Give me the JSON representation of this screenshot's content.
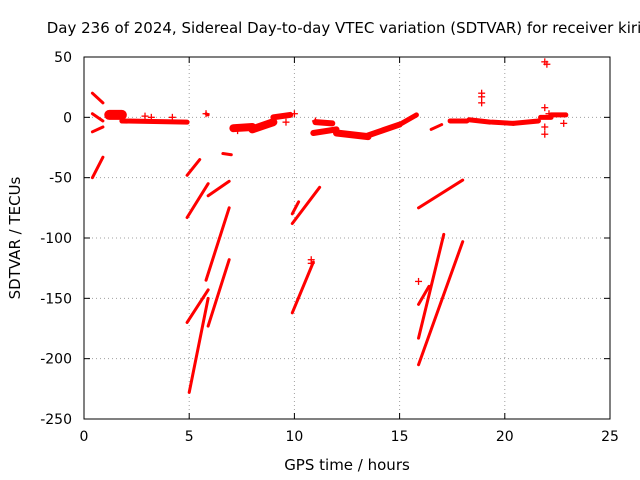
{
  "chart_data": {
    "type": "scatter",
    "title": "Day 236 of 2024, Sidereal Day-to-day VTEC variation (SDTVAR) for receiver kiri",
    "xlabel": "GPS time / hours",
    "ylabel": "SDTVAR / TECUs",
    "xlim": [
      0,
      25
    ],
    "ylim": [
      -250,
      50
    ],
    "xticks": [
      0,
      5,
      10,
      15,
      20,
      25
    ],
    "yticks": [
      -250,
      -200,
      -150,
      -100,
      -50,
      0,
      50
    ],
    "grid": true,
    "marker": "plus",
    "color": "#ff0000",
    "tracks": [
      {
        "x": [
          0.4,
          0.9
        ],
        "y": [
          20,
          12
        ],
        "w": 3
      },
      {
        "x": [
          0.4,
          0.9
        ],
        "y": [
          3,
          -3
        ],
        "w": 3
      },
      {
        "x": [
          0.4,
          0.9
        ],
        "y": [
          -12,
          -8
        ],
        "w": 3
      },
      {
        "x": [
          0.4,
          0.9
        ],
        "y": [
          -50,
          -33
        ],
        "w": 3
      },
      {
        "x": [
          1.2,
          1.8
        ],
        "y": [
          2,
          2
        ],
        "w": 10
      },
      {
        "x": [
          1.8,
          4.9
        ],
        "y": [
          -3,
          -4
        ],
        "w": 5
      },
      {
        "x": [
          4.9,
          5.5
        ],
        "y": [
          -48,
          -35
        ],
        "w": 3
      },
      {
        "x": [
          4.9,
          5.9
        ],
        "y": [
          -83,
          -55
        ],
        "w": 3
      },
      {
        "x": [
          4.9,
          5.9
        ],
        "y": [
          -170,
          -143
        ],
        "w": 3
      },
      {
        "x": [
          5.0,
          5.9
        ],
        "y": [
          -228,
          -150
        ],
        "w": 3
      },
      {
        "x": [
          5.8,
          6.9
        ],
        "y": [
          -135,
          -75
        ],
        "w": 3
      },
      {
        "x": [
          5.9,
          6.9
        ],
        "y": [
          -173,
          -118
        ],
        "w": 3
      },
      {
        "x": [
          5.9,
          6.9
        ],
        "y": [
          -65,
          -53
        ],
        "w": 3
      },
      {
        "x": [
          6.6,
          7.0
        ],
        "y": [
          -30,
          -31
        ],
        "w": 3
      },
      {
        "x": [
          5.8,
          5.9
        ],
        "y": [
          3,
          2
        ],
        "w": 3
      },
      {
        "x": [
          7.1,
          8.0
        ],
        "y": [
          -9,
          -8
        ],
        "w": 8
      },
      {
        "x": [
          8.0,
          9.0
        ],
        "y": [
          -10,
          -4
        ],
        "w": 8
      },
      {
        "x": [
          9.0,
          9.8
        ],
        "y": [
          0,
          2
        ],
        "w": 6
      },
      {
        "x": [
          9.9,
          11.2
        ],
        "y": [
          -88,
          -58
        ],
        "w": 3
      },
      {
        "x": [
          9.9,
          10.2
        ],
        "y": [
          -80,
          -70
        ],
        "w": 3
      },
      {
        "x": [
          9.9,
          10.9
        ],
        "y": [
          -162,
          -120
        ],
        "w": 3
      },
      {
        "x": [
          10.9,
          12.0
        ],
        "y": [
          -13,
          -10
        ],
        "w": 6
      },
      {
        "x": [
          11.0,
          11.8
        ],
        "y": [
          -4,
          -5
        ],
        "w": 6
      },
      {
        "x": [
          12.0,
          13.5
        ],
        "y": [
          -13,
          -16
        ],
        "w": 7
      },
      {
        "x": [
          13.5,
          15.0
        ],
        "y": [
          -15,
          -6
        ],
        "w": 6
      },
      {
        "x": [
          15.0,
          15.8
        ],
        "y": [
          -6,
          2
        ],
        "w": 5
      },
      {
        "x": [
          15.9,
          18.0
        ],
        "y": [
          -75,
          -52
        ],
        "w": 3
      },
      {
        "x": [
          15.9,
          16.4
        ],
        "y": [
          -155,
          -140
        ],
        "w": 3
      },
      {
        "x": [
          15.9,
          17.1
        ],
        "y": [
          -183,
          -97
        ],
        "w": 3
      },
      {
        "x": [
          15.9,
          18.0
        ],
        "y": [
          -205,
          -103
        ],
        "w": 3
      },
      {
        "x": [
          16.5,
          17.0
        ],
        "y": [
          -10,
          -6
        ],
        "w": 3
      },
      {
        "x": [
          17.4,
          18.2
        ],
        "y": [
          -3,
          -3
        ],
        "w": 5
      },
      {
        "x": [
          18.3,
          19.3
        ],
        "y": [
          -2,
          -4
        ],
        "w": 5
      },
      {
        "x": [
          19.4,
          20.4
        ],
        "y": [
          -4,
          -5
        ],
        "w": 5
      },
      {
        "x": [
          20.4,
          21.6
        ],
        "y": [
          -5,
          -3
        ],
        "w": 5
      },
      {
        "x": [
          21.7,
          22.2
        ],
        "y": [
          0,
          0
        ],
        "w": 5
      },
      {
        "x": [
          22.2,
          22.9
        ],
        "y": [
          2,
          2
        ],
        "w": 5
      }
    ],
    "points": [
      {
        "x": 2.9,
        "y": 1
      },
      {
        "x": 3.2,
        "y": 0
      },
      {
        "x": 4.2,
        "y": 0
      },
      {
        "x": 5.8,
        "y": 3
      },
      {
        "x": 7.3,
        "y": -11
      },
      {
        "x": 9.6,
        "y": -4
      },
      {
        "x": 10.0,
        "y": 3
      },
      {
        "x": 10.8,
        "y": -118
      },
      {
        "x": 10.8,
        "y": -121
      },
      {
        "x": 11.0,
        "y": -3
      },
      {
        "x": 15.9,
        "y": -136
      },
      {
        "x": 18.9,
        "y": 20
      },
      {
        "x": 18.9,
        "y": 17
      },
      {
        "x": 18.9,
        "y": 12
      },
      {
        "x": 21.9,
        "y": 46
      },
      {
        "x": 22.0,
        "y": 44
      },
      {
        "x": 21.9,
        "y": 8
      },
      {
        "x": 21.9,
        "y": -8
      },
      {
        "x": 21.9,
        "y": -14
      },
      {
        "x": 22.8,
        "y": -5
      },
      {
        "x": 22.1,
        "y": 3
      }
    ]
  }
}
